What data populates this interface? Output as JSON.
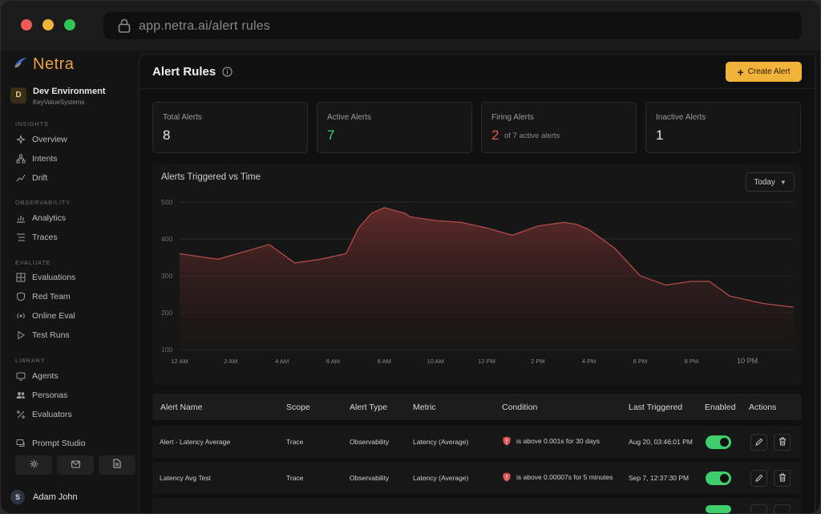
{
  "browser": {
    "url": "app.netra.ai/alert rules"
  },
  "brand": {
    "name": "Netra",
    "accent": "#e8a23c"
  },
  "environment": {
    "initial": "D",
    "name": "Dev Environment",
    "org": "KeyValueSystems"
  },
  "sidebar": {
    "sections": [
      {
        "title": "INSIGHTS",
        "items": [
          {
            "label": "Overview",
            "icon": "sparkle-icon"
          },
          {
            "label": "Intents",
            "icon": "hierarchy-icon"
          },
          {
            "label": "Drift",
            "icon": "drift-icon"
          }
        ]
      },
      {
        "title": "OBSERVABILITY",
        "items": [
          {
            "label": "Analytics",
            "icon": "bar-chart-icon"
          },
          {
            "label": "Traces",
            "icon": "list-icon"
          }
        ]
      },
      {
        "title": "EVALUATE",
        "items": [
          {
            "label": "Evaluations",
            "icon": "grid-icon"
          },
          {
            "label": "Red Team",
            "icon": "shield-icon"
          },
          {
            "label": "Online Eval",
            "icon": "signal-icon"
          },
          {
            "label": "Test Runs",
            "icon": "play-icon"
          }
        ]
      },
      {
        "title": "LIBRARY",
        "items": [
          {
            "label": "Agents",
            "icon": "agents-icon"
          },
          {
            "label": "Personas",
            "icon": "users-icon"
          },
          {
            "label": "Evaluators",
            "icon": "percent-icon"
          }
        ]
      }
    ],
    "prompt_studio": "Prompt Studio",
    "user": {
      "initial": "S",
      "name": "Adam John"
    }
  },
  "header": {
    "title": "Alert Rules",
    "create_label": "Create Alert"
  },
  "stats": [
    {
      "label": "Total Alerts",
      "value": "8"
    },
    {
      "label": "Active Alerts",
      "value": "7"
    },
    {
      "label": "Firing Alerts",
      "value": "2",
      "extra": "of 7 active alerts"
    },
    {
      "label": "Inactive Alerts",
      "value": "1"
    }
  ],
  "chart_range": "Today",
  "chart_data": {
    "type": "area",
    "title": "Alerts Triggered  vs Time",
    "x_tick_labels": [
      "12 AM",
      "2 AM",
      "4 AM",
      "6 AM",
      "8 AM",
      "10 AM",
      "12 PM",
      "2 PM",
      "4 PM",
      "6 PM",
      "8 PM",
      "10 PM"
    ],
    "x": [
      0,
      1.5,
      2.5,
      3.5,
      4.5,
      5.5,
      6.5,
      7,
      7.5,
      8,
      8.8,
      9,
      10,
      11,
      12,
      13,
      14,
      15,
      15.5,
      16,
      17,
      18,
      19,
      20,
      20.7,
      21.5,
      22.8,
      24
    ],
    "values": [
      360,
      345,
      365,
      385,
      335,
      345,
      360,
      430,
      470,
      485,
      470,
      460,
      450,
      445,
      430,
      410,
      435,
      445,
      440,
      425,
      375,
      300,
      275,
      285,
      285,
      245,
      225,
      215
    ],
    "ylim": [
      100,
      500
    ],
    "y_ticks": [
      100,
      200,
      300,
      400,
      500
    ],
    "grid": true,
    "color": "#b24a4a"
  },
  "table": {
    "columns": [
      "Alert Name",
      "Scope",
      "Alert Type",
      "Metric",
      "Condition",
      "Last Triggered",
      "Enabled",
      "Actions"
    ],
    "rows": [
      {
        "name": "Alert  - Latency Average",
        "scope": "Trace",
        "type": "Observability",
        "metric": "Latency (Average)",
        "condition": "is above 0.001s for 30 days",
        "last": "Aug 20, 03:46:01 PM",
        "enabled": true
      },
      {
        "name": "Latency Avg Test",
        "scope": "Trace",
        "type": "Observability",
        "metric": "Latency (Average)",
        "condition": "is above 0.00007s for 5 minutes",
        "last": "Sep 7, 12:37:30 PM",
        "enabled": true
      }
    ]
  },
  "colors": {
    "success": "#3ecf6c",
    "danger": "#e05555",
    "primary": "#f2b33a"
  }
}
